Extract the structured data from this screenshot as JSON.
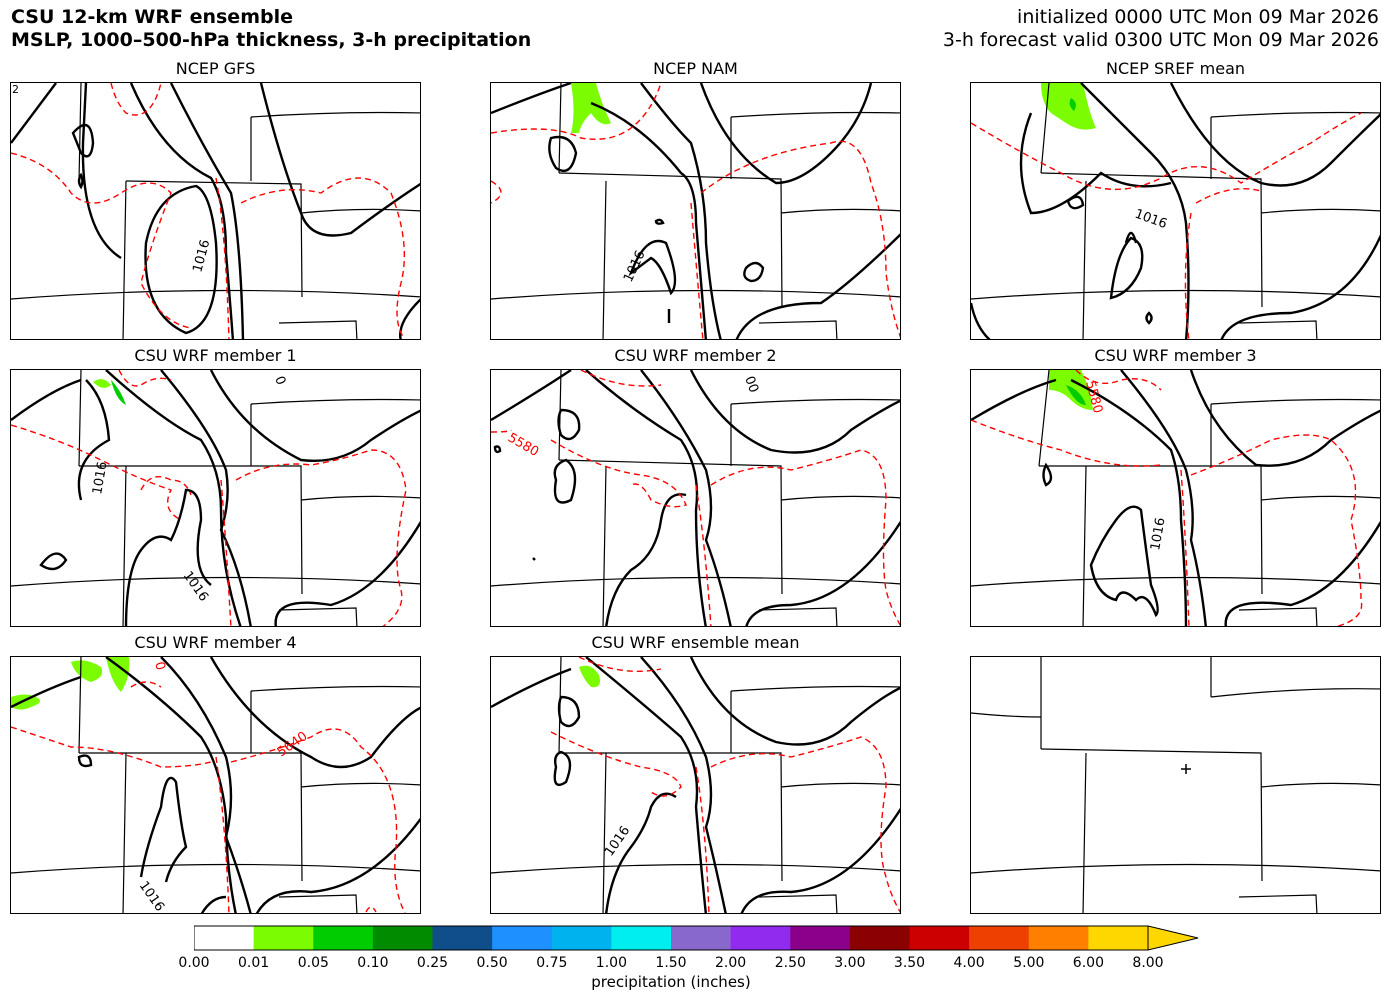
{
  "header": {
    "title_line1": "CSU 12-km WRF ensemble",
    "title_line2": "MSLP, 1000–500-hPa thickness, 3-h precipitation",
    "init_line": "initialized 0000 UTC Mon 09 Mar 2026",
    "valid_line": "3-h forecast valid 0300 UTC Mon 09 Mar 2026"
  },
  "panels": [
    {
      "title": "NCEP GFS",
      "labels": [
        "1016"
      ],
      "corner": "2"
    },
    {
      "title": "NCEP NAM",
      "labels": [
        "1016"
      ]
    },
    {
      "title": "NCEP SREF mean",
      "labels": [
        "1016"
      ]
    },
    {
      "title": "CSU WRF member 1",
      "labels": [
        "1016",
        "1016",
        "0"
      ]
    },
    {
      "title": "CSU WRF member 2",
      "labels": [
        "5580",
        "00"
      ]
    },
    {
      "title": "CSU WRF member 3",
      "labels": [
        "5580",
        "1016"
      ]
    },
    {
      "title": "CSU WRF member 4",
      "labels": [
        "5640",
        "1016",
        "0"
      ]
    },
    {
      "title": "CSU WRF ensemble mean",
      "labels": [
        "1016"
      ]
    },
    {
      "title": "",
      "labels": []
    }
  ],
  "colorbar": {
    "label": "precipitation (inches)",
    "ticks": [
      "0.00",
      "0.01",
      "0.05",
      "0.10",
      "0.25",
      "0.50",
      "0.75",
      "1.00",
      "1.50",
      "2.00",
      "2.50",
      "3.00",
      "3.50",
      "4.00",
      "5.00",
      "6.00",
      "8.00"
    ],
    "colors": [
      "#ffffff",
      "#7cfc00",
      "#00cd00",
      "#008b00",
      "#104e8b",
      "#1e90ff",
      "#00b2ee",
      "#00eeee",
      "#8968cd",
      "#912cee",
      "#8b008b",
      "#8b0000",
      "#cd0000",
      "#ee4000",
      "#ff7f00",
      "#ffd700"
    ]
  },
  "colors": {
    "mslp_contour": "#000000",
    "thickness_contour": "#ff0000",
    "precip_light": "#7cfc00",
    "precip_medium": "#00cd00"
  }
}
